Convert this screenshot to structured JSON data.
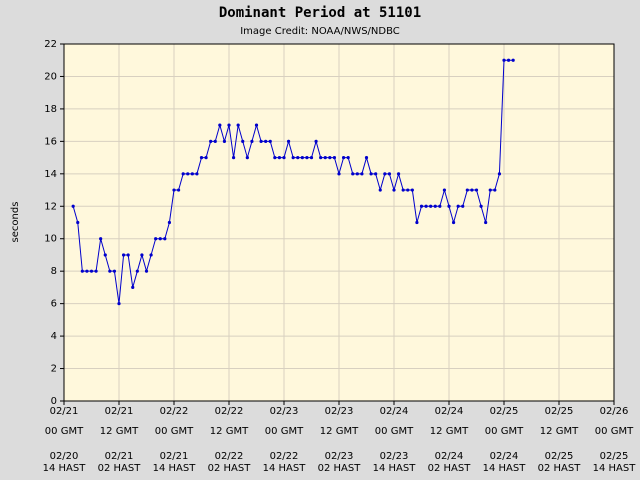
{
  "chart_data": {
    "type": "line",
    "title": "Dominant Period at 51101",
    "subtitle": "Image Credit: NOAA/NWS/NDBC",
    "y_label": "seconds",
    "x": [
      2,
      3,
      4,
      5,
      6,
      7,
      8,
      9,
      10,
      11,
      12,
      13,
      14,
      15,
      16,
      17,
      18,
      19,
      20,
      21,
      22,
      23,
      24,
      25,
      26,
      27,
      28,
      29,
      30,
      31,
      32,
      33,
      34,
      35,
      36,
      37,
      38,
      39,
      40,
      41,
      42,
      43,
      44,
      45,
      46,
      47,
      48,
      49,
      50,
      51,
      52,
      53,
      54,
      55,
      56,
      57,
      58,
      59,
      60,
      61,
      62,
      63,
      64,
      65,
      66,
      67,
      68,
      69,
      70,
      71,
      72,
      73,
      74,
      75,
      76,
      77,
      78,
      79,
      80,
      81,
      82,
      83,
      84,
      85,
      86,
      87,
      88,
      89,
      90,
      91,
      92,
      93,
      94,
      95,
      96,
      97,
      98
    ],
    "series": [
      {
        "name": "Dominant Period",
        "color": "#0000cc",
        "values": [
          12,
          11,
          8,
          8,
          8,
          8,
          10,
          9,
          8,
          8,
          6,
          9,
          9,
          7,
          8,
          9,
          8,
          9,
          10,
          10,
          10,
          11,
          13,
          13,
          14,
          14,
          14,
          14,
          15,
          15,
          16,
          16,
          17,
          16,
          17,
          15,
          17,
          16,
          15,
          16,
          17,
          16,
          16,
          16,
          15,
          15,
          15,
          16,
          15,
          15,
          15,
          15,
          15,
          16,
          15,
          15,
          15,
          15,
          14,
          15,
          15,
          14,
          14,
          14,
          15,
          14,
          14,
          13,
          14,
          14,
          13,
          14,
          13,
          13,
          13,
          11,
          12,
          12,
          12,
          12,
          12,
          13,
          12,
          11,
          12,
          12,
          13,
          13,
          13,
          12,
          11,
          13,
          13,
          14,
          21,
          21,
          21
        ]
      }
    ],
    "xlim": [
      0,
      120
    ],
    "xticks": [
      {
        "value": 0,
        "label": [
          "02/21",
          "00 GMT",
          "02/20",
          "14 HAST"
        ]
      },
      {
        "value": 12,
        "label": [
          "02/21",
          "12 GMT",
          "02/21",
          "02 HAST"
        ]
      },
      {
        "value": 24,
        "label": [
          "02/22",
          "00 GMT",
          "02/21",
          "14 HAST"
        ]
      },
      {
        "value": 36,
        "label": [
          "02/22",
          "12 GMT",
          "02/22",
          "02 HAST"
        ]
      },
      {
        "value": 48,
        "label": [
          "02/23",
          "00 GMT",
          "02/22",
          "14 HAST"
        ]
      },
      {
        "value": 60,
        "label": [
          "02/23",
          "12 GMT",
          "02/23",
          "02 HAST"
        ]
      },
      {
        "value": 72,
        "label": [
          "02/24",
          "00 GMT",
          "02/23",
          "14 HAST"
        ]
      },
      {
        "value": 84,
        "label": [
          "02/24",
          "12 GMT",
          "02/24",
          "02 HAST"
        ]
      },
      {
        "value": 96,
        "label": [
          "02/25",
          "00 GMT",
          "02/24",
          "14 HAST"
        ]
      },
      {
        "value": 108,
        "label": [
          "02/25",
          "12 GMT",
          "02/25",
          "02 HAST"
        ]
      },
      {
        "value": 120,
        "label": [
          "02/26",
          "00 GMT",
          "02/25",
          "14 HAST"
        ]
      }
    ],
    "ylim": [
      0,
      22
    ],
    "yticks": [
      0,
      2,
      4,
      6,
      8,
      10,
      12,
      14,
      16,
      18,
      20,
      22
    ],
    "grid": true
  }
}
